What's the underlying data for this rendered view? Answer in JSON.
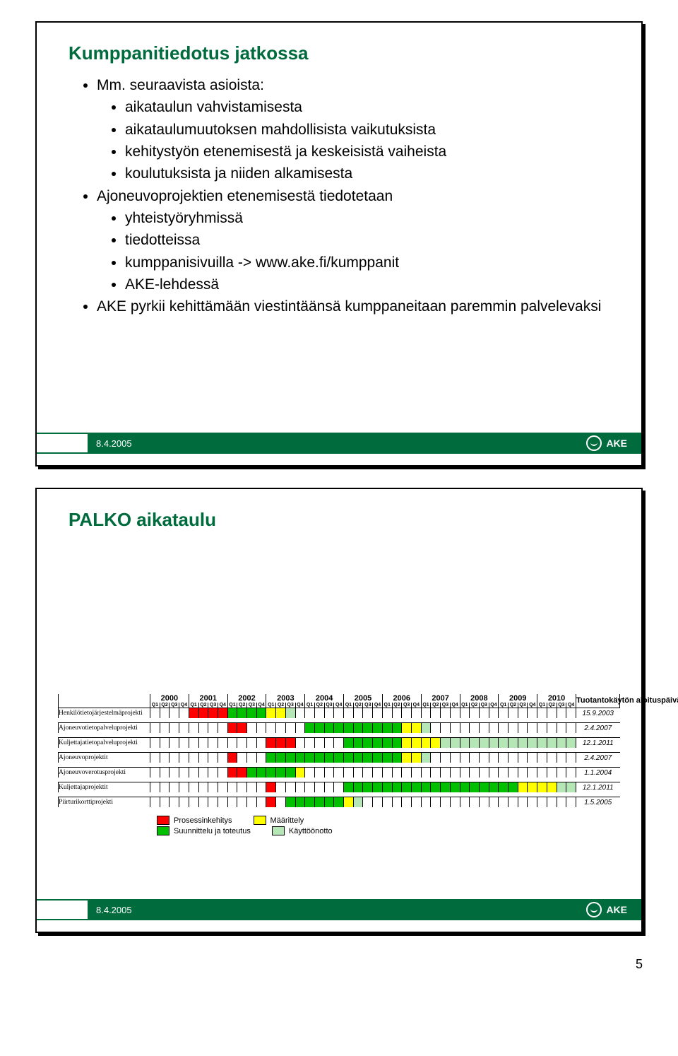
{
  "slide1": {
    "title": "Kumppanitiedotus jatkossa",
    "bullets": [
      {
        "text": "Mm. seuraavista asioista:",
        "sub": [
          "aikataulun vahvistamisesta",
          "aikataulumuutoksen mahdollisista vaikutuksista",
          "kehitystyön etenemisestä ja keskeisistä vaiheista",
          "koulutuksista ja niiden alkamisesta"
        ]
      },
      {
        "text": "Ajoneuvoprojektien etenemisestä tiedotetaan",
        "sub": [
          "yhteistyöryhmissä",
          "tiedotteissa",
          "kumppanisivuilla -> www.ake.fi/kumppanit",
          "AKE-lehdessä"
        ]
      },
      {
        "text": "AKE pyrkii kehittämään viestintäänsä kumppaneitaan paremmin palvelevaksi",
        "sub": []
      }
    ]
  },
  "slide2": {
    "title": "PALKO aikataulu"
  },
  "footer": {
    "date": "8.4.2005",
    "logo_text": "AKE"
  },
  "page_number": "5",
  "gantt": {
    "years": [
      "2000",
      "2001",
      "2002",
      "2003",
      "2004",
      "2005",
      "2006",
      "2007",
      "2008",
      "2009",
      "2010"
    ],
    "quarters": [
      "Q1",
      "Q2",
      "Q3",
      "Q4"
    ],
    "date_header": "Tuotantokäytön aloituspäivä",
    "colors": {
      "red": "#ff0000",
      "green": "#00c000",
      "yellow": "#ffff00",
      "light_green": "#b5e6b5",
      "border": "#000000"
    },
    "rows": [
      {
        "label": "Henkilötietojärjestelmäprojekti",
        "date": "15.9.2003",
        "cells": [
          "",
          "",
          "",
          "",
          "r",
          "r",
          "r",
          "r",
          "g",
          "g",
          "g",
          "g",
          "y",
          "y",
          "l",
          "",
          "",
          "",
          "",
          "",
          "",
          "",
          "",
          "",
          "",
          "",
          "",
          "",
          "",
          "",
          "",
          "",
          "",
          "",
          "",
          "",
          "",
          "",
          "",
          "",
          "",
          "",
          "",
          ""
        ]
      },
      {
        "label": "Ajoneuvotietopalveluprojekti",
        "date": "2.4.2007",
        "cells": [
          "",
          "",
          "",
          "",
          "",
          "",
          "",
          "",
          "r",
          "r",
          "",
          "",
          "",
          "",
          "",
          "",
          "g",
          "g",
          "g",
          "g",
          "g",
          "g",
          "g",
          "g",
          "g",
          "g",
          "y",
          "y",
          "l",
          "",
          "",
          "",
          "",
          "",
          "",
          "",
          "",
          "",
          "",
          "",
          "",
          "",
          "",
          ""
        ]
      },
      {
        "label": "Kuljettajatietopalveluprojekti",
        "date": "12.1.2011",
        "cells": [
          "",
          "",
          "",
          "",
          "",
          "",
          "",
          "",
          "",
          "",
          "",
          "",
          "r",
          "r",
          "r",
          "",
          "",
          "",
          "",
          "",
          "g",
          "g",
          "g",
          "g",
          "g",
          "g",
          "y",
          "y",
          "y",
          "y",
          "l",
          "l",
          "l",
          "l",
          "l",
          "l",
          "l",
          "l",
          "l",
          "l",
          "l",
          "l",
          "l",
          "l"
        ]
      },
      {
        "label": "Ajoneuvoprojektit",
        "date": "2.4.2007",
        "cells": [
          "",
          "",
          "",
          "",
          "",
          "",
          "",
          "",
          "r",
          "",
          "",
          "",
          "g",
          "g",
          "g",
          "g",
          "g",
          "g",
          "g",
          "g",
          "g",
          "g",
          "g",
          "g",
          "g",
          "g",
          "y",
          "y",
          "l",
          "",
          "",
          "",
          "",
          "",
          "",
          "",
          "",
          "",
          "",
          "",
          "",
          "",
          "",
          ""
        ]
      },
      {
        "label": "Ajoneuvoverotusprojekti",
        "date": "1.1.2004",
        "cells": [
          "",
          "",
          "",
          "",
          "",
          "",
          "",
          "",
          "r",
          "r",
          "g",
          "g",
          "g",
          "g",
          "g",
          "y",
          "",
          "",
          "",
          "",
          "",
          "",
          "",
          "",
          "",
          "",
          "",
          "",
          "",
          "",
          "",
          "",
          "",
          "",
          "",
          "",
          "",
          "",
          "",
          "",
          "",
          "",
          "",
          ""
        ]
      },
      {
        "label": "Kuljettajaprojektit",
        "date": "12.1.2011",
        "cells": [
          "",
          "",
          "",
          "",
          "",
          "",
          "",
          "",
          "",
          "",
          "",
          "",
          "r",
          "",
          "",
          "",
          "",
          "",
          "",
          "",
          "g",
          "g",
          "g",
          "g",
          "g",
          "g",
          "g",
          "g",
          "g",
          "g",
          "g",
          "g",
          "g",
          "g",
          "g",
          "g",
          "g",
          "g",
          "y",
          "y",
          "y",
          "y",
          "l",
          "l"
        ]
      },
      {
        "label": "Piirturikorttiprojekti",
        "date": "1.5.2005",
        "cells": [
          "",
          "",
          "",
          "",
          "",
          "",
          "",
          "",
          "",
          "",
          "",
          "",
          "r",
          "",
          "g",
          "g",
          "g",
          "g",
          "g",
          "g",
          "y",
          "l",
          "",
          "",
          "",
          "",
          "",
          "",
          "",
          "",
          "",
          "",
          "",
          "",
          "",
          "",
          "",
          "",
          "",
          "",
          "",
          "",
          "",
          ""
        ]
      }
    ],
    "legend": [
      {
        "color": "red",
        "label": "Prosessinkehitys"
      },
      {
        "color": "yellow",
        "label": "Määrittely"
      },
      {
        "color": "green",
        "label": "Suunnittelu ja toteutus"
      },
      {
        "color": "light_green",
        "label": "Käyttöönotto"
      }
    ]
  }
}
